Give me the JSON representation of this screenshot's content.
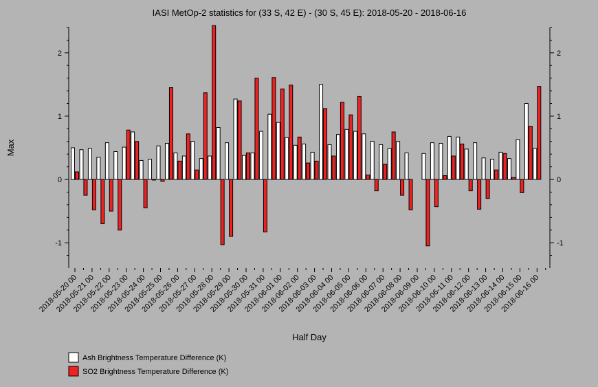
{
  "chart_data": {
    "type": "bar",
    "title": "IASI MetOp-2 statistics for (33 S, 42 E) - (30 S, 45 E): 2018-05-20 - 2018-06-16",
    "xlabel": "Half Day",
    "ylabel": "Max",
    "ylim": [
      -1.4,
      2.4
    ],
    "yticks": [
      -1,
      0,
      1,
      2
    ],
    "grid": false,
    "legend_position": "bottom-left",
    "colors": {
      "background": "#b4b4b4",
      "ash": "#ffffff",
      "so2": "#ee2222"
    },
    "xtick_labels": [
      "2018-05-20 00",
      "2018-05-21 00",
      "2018-05-22 00",
      "2018-05-23 00",
      "2018-05-24 00",
      "2018-05-25 00",
      "2018-05-26 00",
      "2018-05-27 00",
      "2018-05-28 00",
      "2018-05-29 00",
      "2018-05-30 00",
      "2018-05-31 00",
      "2018-06-01 00",
      "2018-06-02 00",
      "2018-06-03 00",
      "2018-06-04 00",
      "2018-06-05 00",
      "2018-06-06 00",
      "2018-06-07 00",
      "2018-06-08 00",
      "2018-06-09 00",
      "2018-06-10 00",
      "2018-06-11 00",
      "2018-06-12 00",
      "2018-06-13 00",
      "2018-06-14 00",
      "2018-06-15 00",
      "2018-06-16 00"
    ],
    "series": [
      {
        "name": "Ash Brightness Temperature Difference (K)",
        "values": [
          0.5,
          0.47,
          0.49,
          0.35,
          0.58,
          0.44,
          0.51,
          0.75,
          0.3,
          0.32,
          0.53,
          0.57,
          0.42,
          0.37,
          0.6,
          0.33,
          0.37,
          0.82,
          0.58,
          1.27,
          0.38,
          0.42,
          0.76,
          1.03,
          0.9,
          0.66,
          0.54,
          0.56,
          0.43,
          1.5,
          0.55,
          0.71,
          0.79,
          0.76,
          0.72,
          0.6,
          0.55,
          0.49,
          0.6,
          0.42,
          null,
          0.41,
          0.58,
          0.57,
          0.68,
          0.67,
          0.48,
          0.58,
          0.34,
          0.32,
          0.43,
          0.33,
          0.63,
          1.2,
          0.49
        ]
      },
      {
        "name": "SO2 Brightness Temperature Difference (K)",
        "values": [
          0.12,
          -0.25,
          -0.48,
          -0.7,
          -0.5,
          -0.8,
          0.78,
          0.6,
          -0.45,
          -0.01,
          -0.03,
          1.45,
          0.29,
          0.72,
          0.15,
          1.37,
          2.43,
          -1.03,
          -0.9,
          1.24,
          0.42,
          1.6,
          -0.83,
          1.61,
          1.43,
          1.49,
          0.67,
          0.26,
          0.29,
          1.12,
          0.37,
          1.22,
          1.02,
          1.31,
          0.07,
          -0.18,
          0.24,
          0.75,
          -0.25,
          -0.48,
          null,
          -1.05,
          -0.43,
          0.06,
          0.37,
          0.56,
          -0.18,
          -0.47,
          -0.3,
          0.15,
          0.41,
          0.03,
          -0.21,
          0.84,
          1.47
        ]
      }
    ]
  }
}
